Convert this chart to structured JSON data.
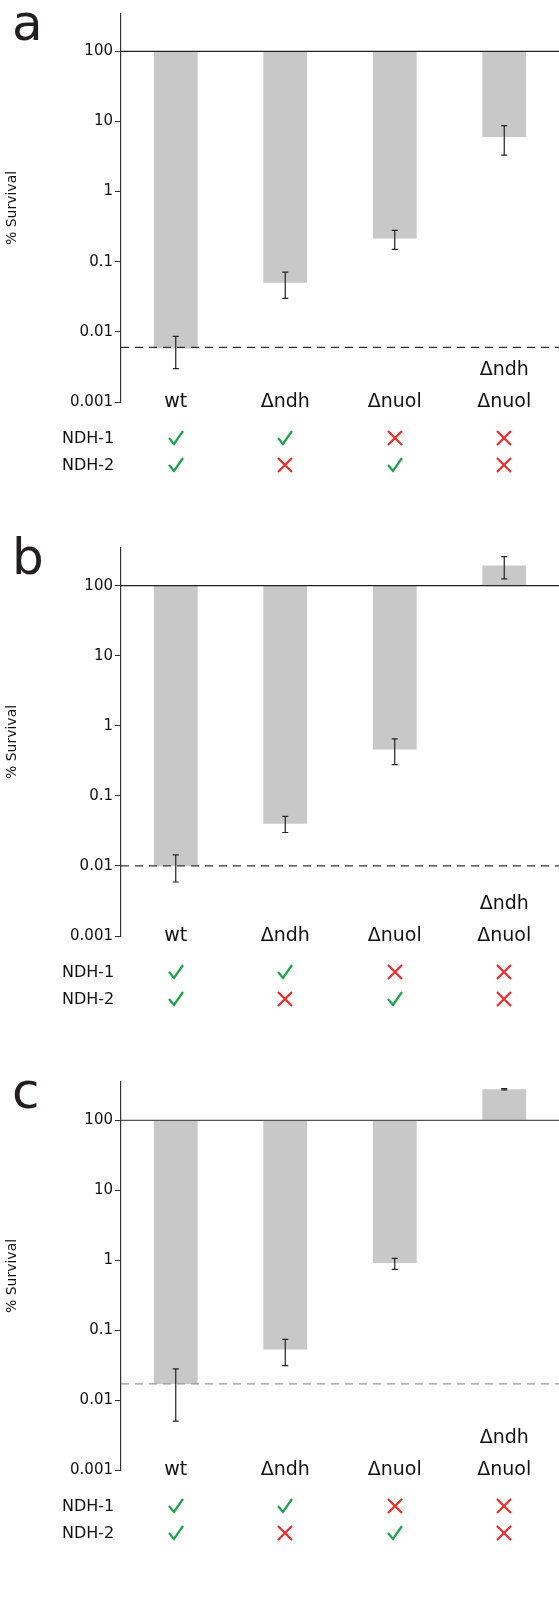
{
  "chart_data": [
    {
      "type": "bar",
      "title": "a",
      "ylabel": "% Survival",
      "categories": [
        "wt",
        "Δndh",
        "Δnuol",
        "Δndh\nΔnuol"
      ],
      "base": [
        100,
        100,
        100,
        100
      ],
      "values": [
        -99.9942,
        -99.95,
        -99.785,
        -94
      ],
      "errors": [
        [
          0.003,
          0.0086
        ],
        [
          0.03,
          0.071
        ],
        [
          0.15,
          0.28
        ],
        [
          3.3,
          8.7
        ]
      ],
      "color": "#c8c8c8",
      "log": true,
      "ylim": [
        0.001,
        340
      ],
      "yticks": [
        0.001,
        0.01,
        0.1,
        1,
        10,
        100
      ],
      "ref_lines": [
        {
          "axis": "y",
          "value": 100,
          "color": "#222222",
          "line_style": "solid"
        },
        {
          "axis": "y",
          "value": 0.006,
          "color": "#333333",
          "line_style": "dashed"
        }
      ],
      "annotations": [
        "NDH-1",
        "NDH-2"
      ]
    },
    {
      "type": "bar",
      "title": "b",
      "ylabel": "% Survival",
      "categories": [
        "wt",
        "Δndh",
        "Δnuol",
        "Δndh\nΔnuol"
      ],
      "base": [
        100,
        100,
        100,
        100
      ],
      "values": [
        -99.99,
        -99.96,
        -99.54,
        94
      ],
      "errors": [
        [
          0.0059,
          0.0144
        ],
        [
          0.03,
          0.051
        ],
        [
          0.28,
          0.65
        ],
        [
          125,
          260
        ]
      ],
      "color": "#c8c8c8",
      "log": true,
      "ylim": [
        0.001,
        345
      ],
      "yticks": [
        0.001,
        0.01,
        0.1,
        1,
        10,
        100
      ],
      "ref_lines": [
        {
          "axis": "y",
          "value": 100,
          "color": "#222222",
          "line_style": "solid"
        },
        {
          "axis": "y",
          "value": 0.01,
          "color": "#333333",
          "line_style": "dashed"
        }
      ],
      "annotations": [
        "NDH-1",
        "NDH-2"
      ]
    },
    {
      "type": "bar",
      "title": "c",
      "ylabel": "% Survival",
      "categories": [
        "wt",
        "Δndh",
        "Δnuol",
        "Δndh\nΔnuol"
      ],
      "base": [
        100,
        100,
        100,
        100
      ],
      "values": [
        -99.983,
        -99.947,
        -99.09,
        179
      ],
      "errors": [
        [
          0.005,
          0.028
        ],
        [
          0.031,
          0.074
        ],
        [
          0.74,
          1.06
        ],
        [
          273,
          286
        ]
      ],
      "color": "#c8c8c8",
      "log": true,
      "ylim": [
        0.001,
        354
      ],
      "yticks": [
        0.001,
        0.01,
        0.1,
        1,
        10,
        100
      ],
      "ref_lines": [
        {
          "axis": "y",
          "value": 100,
          "color": "#555555",
          "line_style": "solid"
        },
        {
          "axis": "y",
          "value": 0.017,
          "color": "#999999",
          "line_style": "dashed"
        }
      ],
      "annotations": [
        "NDH-1",
        "NDH-2"
      ]
    }
  ]
}
